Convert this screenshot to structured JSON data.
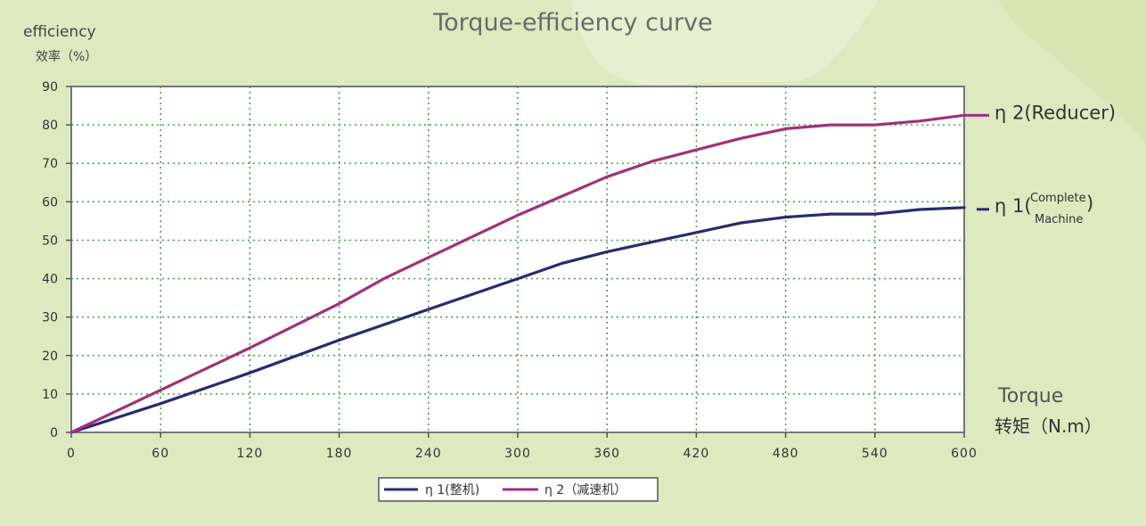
{
  "chart_data": {
    "type": "line",
    "title": "Torque-efficiency curve",
    "ylabel": "efficiency",
    "ylabel_cn": "效率（%）",
    "xlabel": "Torque",
    "xlabel_cn": "转矩（N.m）",
    "xlim": [
      0,
      600
    ],
    "ylim": [
      0,
      90
    ],
    "x_ticks": [
      "0",
      "60",
      "120",
      "180",
      "240",
      "300",
      "360",
      "420",
      "480",
      "540",
      "600"
    ],
    "y_ticks": [
      "0",
      "10",
      "20",
      "30",
      "40",
      "50",
      "60",
      "70",
      "80",
      "90"
    ],
    "grid": true,
    "legend_position": "bottom",
    "series": [
      {
        "name": "η 1(整机)",
        "end_label": "η 1(",
        "end_label_sup": "Complete",
        "end_label_sub": "Machine",
        "end_label_close": ")",
        "color": "#2b2a6e",
        "x": [
          0,
          60,
          120,
          180,
          240,
          300,
          330,
          360,
          390,
          420,
          450,
          480,
          510,
          540,
          570,
          600
        ],
        "y": [
          0,
          7.5,
          15.5,
          24,
          32,
          40,
          44,
          47,
          49.5,
          52,
          54.5,
          56,
          56.8,
          56.8,
          58,
          58.5
        ]
      },
      {
        "name": "η 2（减速机）",
        "end_label": "η 2(Reducer)",
        "color": "#a0307f",
        "x": [
          0,
          60,
          120,
          180,
          210,
          240,
          270,
          300,
          330,
          360,
          390,
          420,
          450,
          480,
          510,
          540,
          570,
          600
        ],
        "y": [
          0,
          11,
          22,
          33.5,
          40,
          45.5,
          51,
          56.5,
          61.5,
          66.5,
          70.5,
          73.5,
          76.5,
          79,
          80,
          80,
          81,
          82.5
        ]
      }
    ]
  }
}
